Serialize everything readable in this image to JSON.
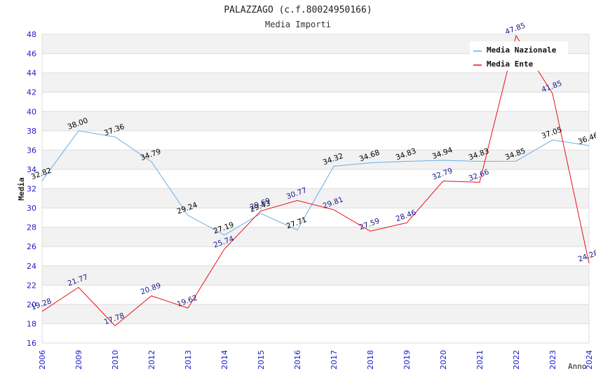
{
  "chart_data": {
    "type": "line",
    "title": "PALAZZAGO (c.f.80024950166)",
    "subtitle": "Media Importi",
    "xlabel": "Anno",
    "ylabel": "Media",
    "categories": [
      "2006",
      "2009",
      "2010",
      "2012",
      "2013",
      "2014",
      "2015",
      "2016",
      "2017",
      "2018",
      "2019",
      "2020",
      "2021",
      "2022",
      "2023",
      "2024"
    ],
    "ylim": [
      16,
      48
    ],
    "yticks": [
      16,
      18,
      20,
      22,
      24,
      26,
      28,
      30,
      32,
      34,
      36,
      38,
      40,
      42,
      44,
      46,
      48
    ],
    "grid": true,
    "legend_position": "top-right",
    "series": [
      {
        "name": "Media Nazionale",
        "color": "#6aaee6",
        "label_color": "#000000",
        "values": [
          32.82,
          38.0,
          37.36,
          34.79,
          29.24,
          27.19,
          29.43,
          27.71,
          34.32,
          34.68,
          34.83,
          34.94,
          34.83,
          34.85,
          37.05,
          36.46
        ]
      },
      {
        "name": "Media Ente",
        "color": "#e8101a",
        "label_color": "#1a1a8c",
        "values": [
          19.28,
          21.77,
          17.78,
          20.89,
          19.62,
          25.74,
          29.69,
          30.77,
          29.81,
          27.59,
          28.46,
          32.79,
          32.66,
          47.85,
          41.85,
          24.28
        ]
      }
    ],
    "colors": {
      "band": "#f2f2f2",
      "grid": "#dddddd",
      "axis_text": "#1a1acc",
      "title_text": "#222222"
    }
  }
}
